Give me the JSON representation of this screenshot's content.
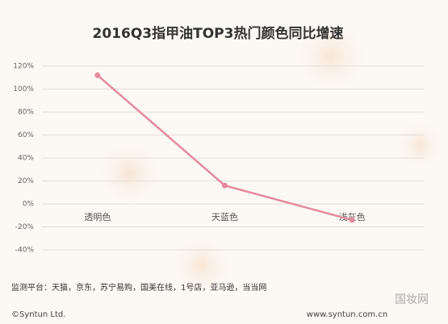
{
  "chart_data": {
    "type": "line",
    "title": "2016Q3指甲油TOP3热门颜色同比增速",
    "categories": [
      "透明色",
      "天蓝色",
      "浅灰色"
    ],
    "series": [
      {
        "name": "同比增速",
        "color": "#e48a9c",
        "values": [
          112,
          16,
          -14
        ]
      }
    ],
    "ylim": [
      -40,
      120
    ],
    "yticks": [
      {
        "value": -40,
        "label": "-40%"
      },
      {
        "value": -20,
        "label": "-20%"
      },
      {
        "value": 0,
        "label": "0%"
      },
      {
        "value": 20,
        "label": "20%"
      },
      {
        "value": 40,
        "label": "40%"
      },
      {
        "value": 60,
        "label": "60%"
      },
      {
        "value": 80,
        "label": "80%"
      },
      {
        "value": 100,
        "label": "100%"
      },
      {
        "value": 120,
        "label": "120%"
      }
    ],
    "grid": true
  },
  "footer": {
    "source": "监测平台：天猫，京东，苏宁易购，国美在线，1号店，亚马逊，当当网",
    "copyright": "©Syntun Ltd.",
    "website": "www.syntun.com.cn",
    "watermark": "国妆网"
  }
}
